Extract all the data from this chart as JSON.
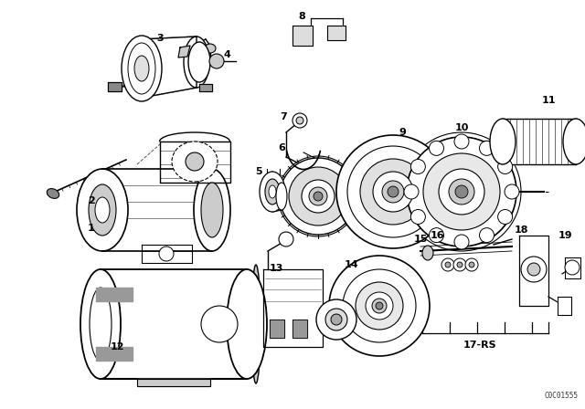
{
  "bg_color": "#ffffff",
  "line_color": "#000000",
  "text_color": "#000000",
  "fig_width": 6.4,
  "fig_height": 4.48,
  "watermark": "C0C01555",
  "dpi": 100
}
